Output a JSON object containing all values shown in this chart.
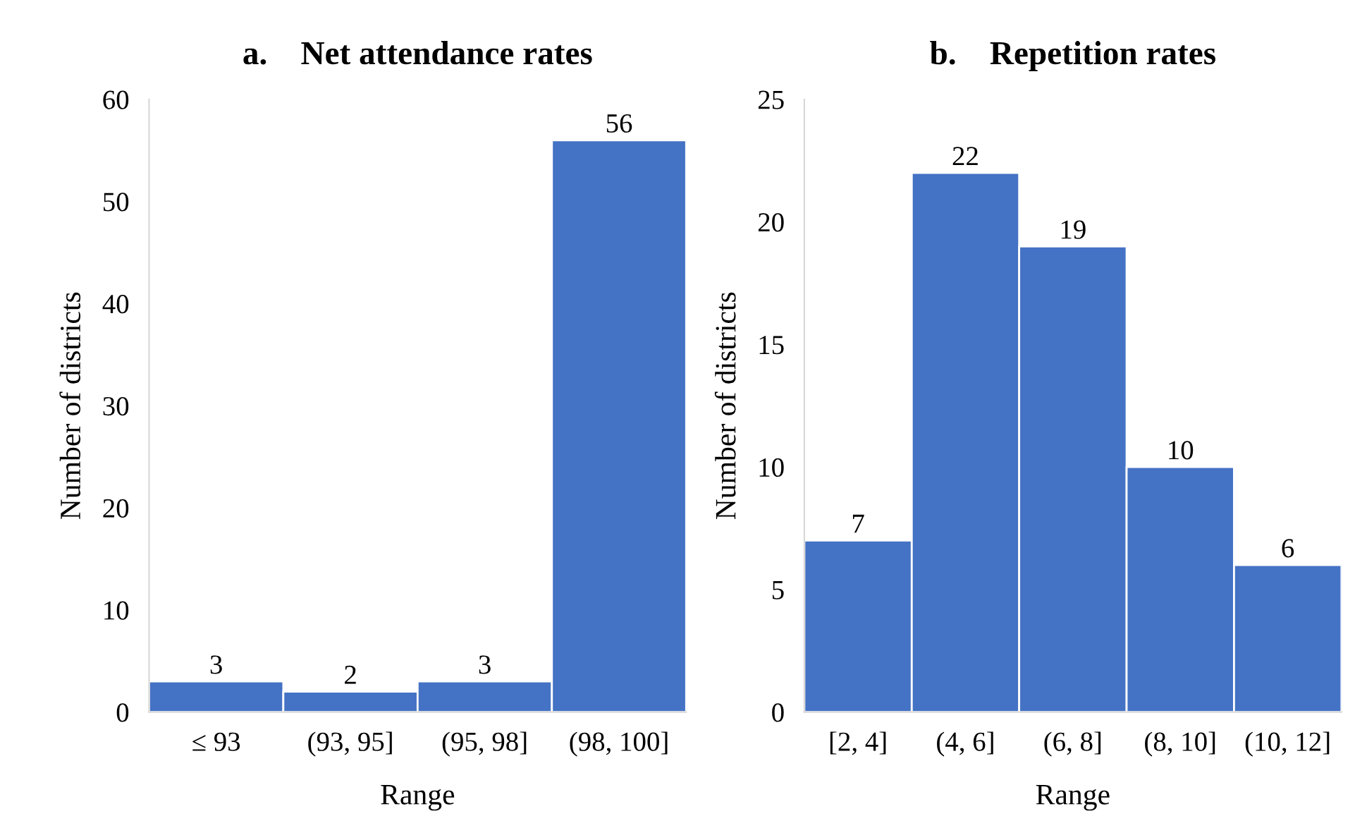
{
  "chart_data": [
    {
      "type": "bar",
      "title": "a.    Net attendance rates",
      "xlabel": "Range",
      "ylabel": "Number of districts",
      "categories": [
        "≤ 93",
        "(93, 95]",
        "(95, 98]",
        "(98, 100]"
      ],
      "values": [
        3,
        2,
        3,
        56
      ],
      "color": "#4472c4",
      "ylim": [
        0,
        60
      ],
      "yticks": [
        0,
        10,
        20,
        30,
        40,
        50,
        60
      ],
      "data_labels": true
    },
    {
      "type": "bar",
      "title": "b.    Repetition rates",
      "xlabel": "Range",
      "ylabel": "Number of districts",
      "categories": [
        "[2, 4]",
        "(4, 6]",
        "(6, 8]",
        "(8, 10]",
        "(10, 12]"
      ],
      "values": [
        7,
        22,
        19,
        10,
        6
      ],
      "color": "#4472c4",
      "ylim": [
        0,
        25
      ],
      "yticks": [
        0,
        5,
        10,
        15,
        20,
        25
      ],
      "data_labels": true
    }
  ]
}
